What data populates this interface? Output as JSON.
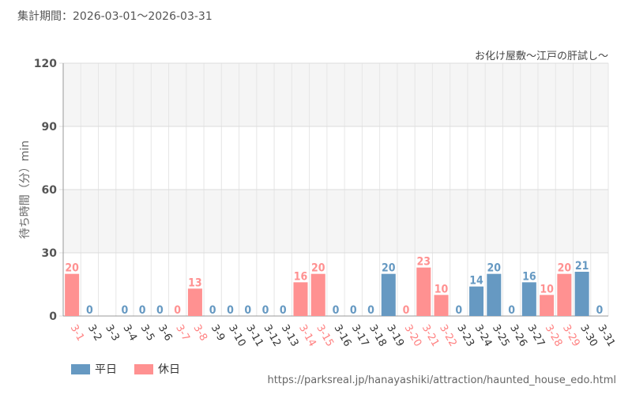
{
  "header": {
    "period": "集計期間：2026-03-01～2026-03-31",
    "attraction": "お化け屋敷～江戸の肝試し～"
  },
  "footer": {
    "source_url": "https://parksreal.jp/hanayashiki/attraction/haunted_house_edo.html"
  },
  "legend": [
    {
      "label": "平日",
      "color": "#6699c2"
    },
    {
      "label": "休日",
      "color": "#ff9191"
    }
  ],
  "chart_data": {
    "type": "bar",
    "ylabel": "待ち時間（分）min",
    "ylim": [
      0,
      120
    ],
    "yticks": [
      0,
      30,
      60,
      90,
      120
    ],
    "grid": true,
    "categories": [
      "3-1",
      "3-2",
      "3-3",
      "3-4",
      "3-5",
      "3-6",
      "3-7",
      "3-8",
      "3-9",
      "3-10",
      "3-11",
      "3-12",
      "3-13",
      "3-14",
      "3-15",
      "3-16",
      "3-17",
      "3-18",
      "3-19",
      "3-20",
      "3-21",
      "3-22",
      "3-23",
      "3-24",
      "3-25",
      "3-26",
      "3-27",
      "3-28",
      "3-29",
      "3-30",
      "3-31"
    ],
    "values": [
      20,
      0,
      null,
      0,
      0,
      0,
      0,
      13,
      0,
      0,
      0,
      0,
      0,
      16,
      20,
      0,
      0,
      0,
      20,
      0,
      23,
      10,
      0,
      14,
      20,
      0,
      16,
      10,
      20,
      21,
      0
    ],
    "day_type": [
      "holiday",
      "weekday",
      "weekday",
      "weekday",
      "weekday",
      "weekday",
      "holiday",
      "holiday",
      "weekday",
      "weekday",
      "weekday",
      "weekday",
      "weekday",
      "holiday",
      "holiday",
      "weekday",
      "weekday",
      "weekday",
      "weekday",
      "holiday",
      "holiday",
      "holiday",
      "weekday",
      "weekday",
      "weekday",
      "weekday",
      "weekday",
      "holiday",
      "holiday",
      "weekday",
      "weekday"
    ],
    "colors": {
      "weekday": "#6699c2",
      "holiday": "#ff9191",
      "weekday_label": "#333333",
      "holiday_label": "#ff8080"
    }
  }
}
